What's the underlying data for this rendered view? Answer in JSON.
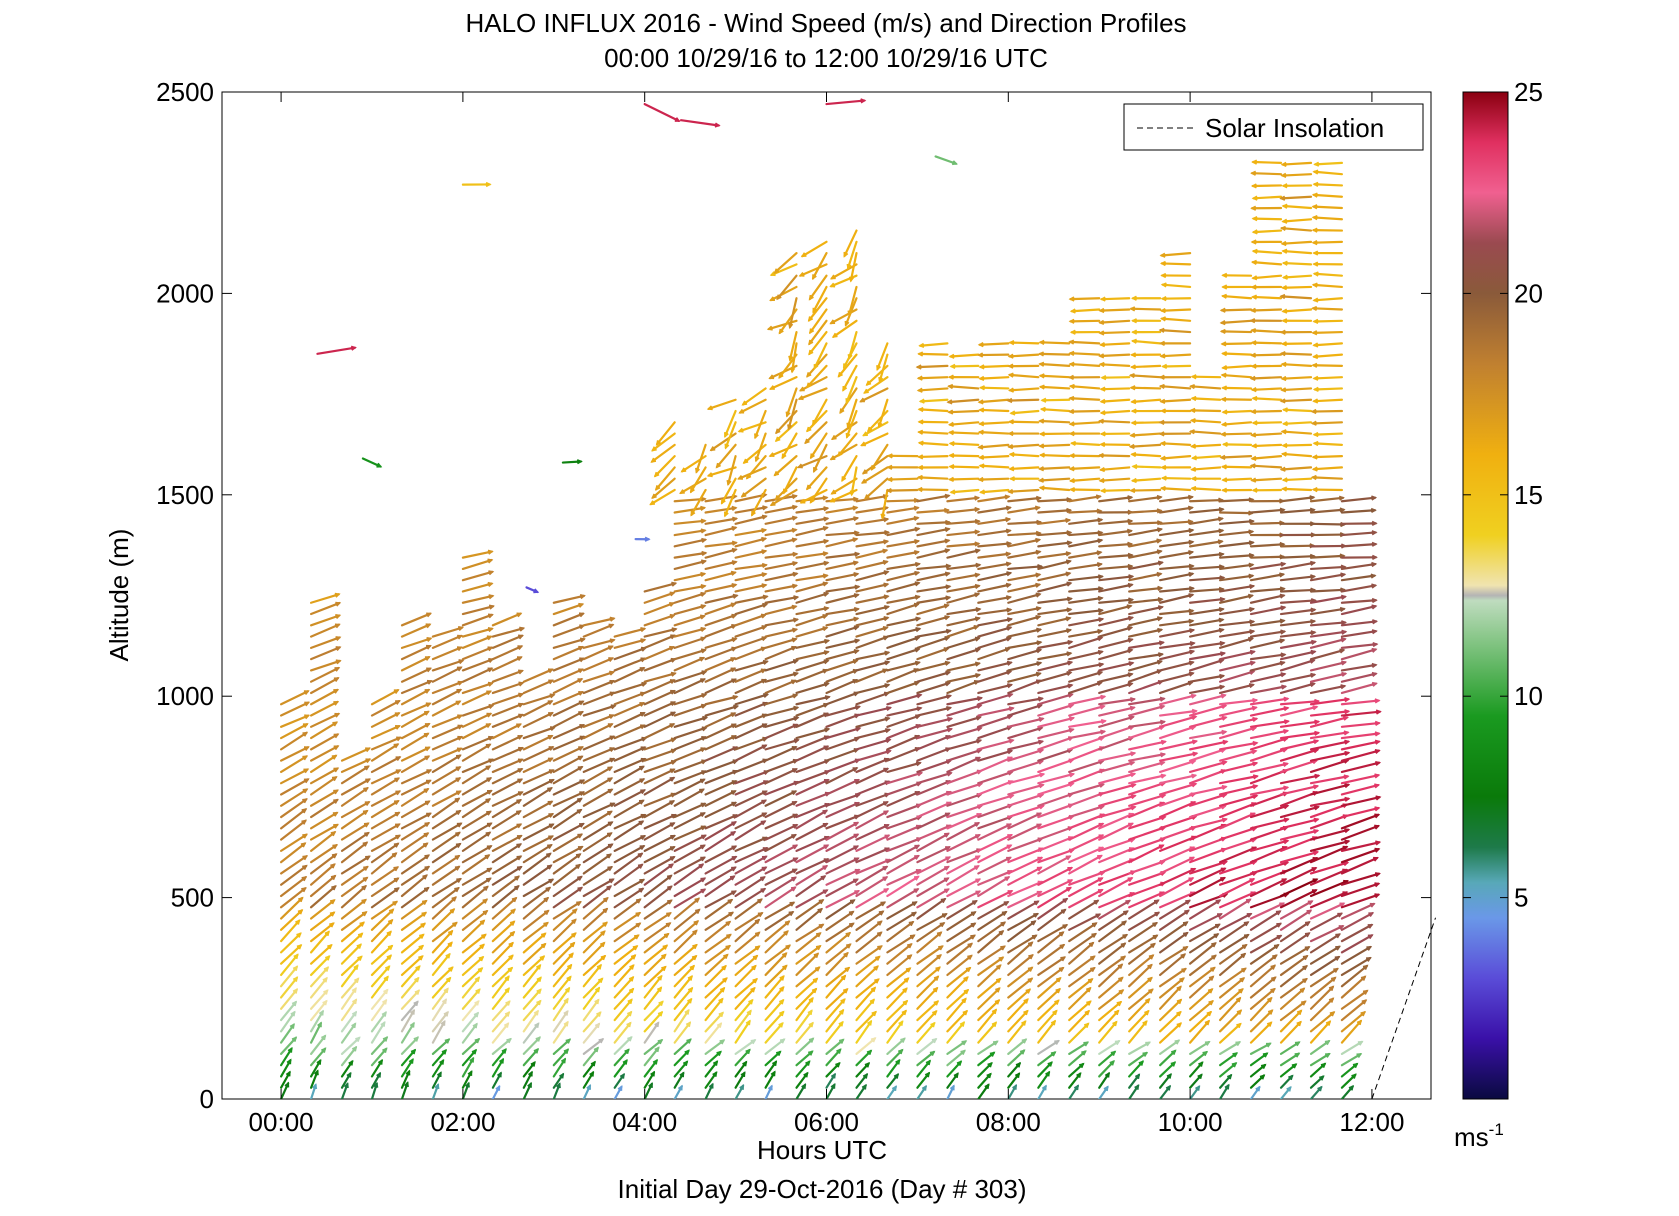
{
  "chart_data": {
    "type": "quiver",
    "title": "HALO INFLUX 2016 - Wind Speed (m/s) and Direction Profiles",
    "subtitle": "00:00 10/29/16 to 12:00 10/29/16  UTC",
    "xlabel": "Hours UTC",
    "ylabel": "Altitude (m)",
    "footer": "Initial Day 29-Oct-2016 (Day # 303)",
    "x_ticks": [
      "00:00",
      "02:00",
      "04:00",
      "06:00",
      "08:00",
      "10:00",
      "12:00"
    ],
    "x_tick_values": [
      0,
      2,
      4,
      6,
      8,
      10,
      12
    ],
    "xlim": [
      -0.65,
      12.65
    ],
    "y_ticks": [
      0,
      500,
      1000,
      1500,
      2000,
      2500
    ],
    "ylim": [
      0,
      2500
    ],
    "legend": {
      "label": "Solar Insolation",
      "placement": "top-right"
    },
    "colorbar": {
      "ticks": [
        5,
        10,
        15,
        20,
        25
      ],
      "range": [
        0,
        25
      ],
      "unit_label": "ms",
      "unit_exponent": "-1"
    },
    "solar_insolation": {
      "x": [
        12.0,
        12.7
      ],
      "y": [
        0,
        450
      ],
      "style": "dashed"
    },
    "profile_times": [
      0.0,
      0.33,
      0.67,
      1.0,
      1.33,
      1.67,
      2.0,
      2.33,
      2.67,
      3.0,
      3.33,
      3.67,
      4.0,
      4.33,
      4.67,
      5.0,
      5.33,
      5.67,
      6.0,
      6.33,
      6.67,
      7.0,
      7.33,
      7.67,
      8.0,
      8.33,
      8.67,
      9.0,
      9.33,
      9.67,
      10.0,
      10.33,
      10.67,
      11.0,
      11.33,
      11.67
    ],
    "profile_tops": [
      1000,
      1250,
      860,
      1000,
      1200,
      1150,
      1350,
      1180,
      1050,
      1250,
      1200,
      1150,
      1280,
      1700,
      1650,
      1750,
      1780,
      2100,
      2150,
      2180,
      1900,
      1600,
      1880,
      1850,
      1880,
      1880,
      1880,
      2000,
      2000,
      2000,
      2120,
      1800,
      2050,
      2330,
      2330,
      2330
    ],
    "layers": [
      {
        "altitude_range": [
          0,
          120
        ],
        "speed_ms": 7,
        "direction": "from south-southwest, turning westerly"
      },
      {
        "altitude_range": [
          120,
          450
        ],
        "speed_ms": 13,
        "direction": "from southwest"
      },
      {
        "altitude_range": [
          450,
          1000
        ],
        "speed_ms": 21,
        "direction": "from west-southwest"
      },
      {
        "altitude_range": [
          1000,
          1500
        ],
        "speed_ms": 19,
        "direction": "from west"
      },
      {
        "altitude_range": [
          1500,
          2350
        ],
        "speed_ms": 16,
        "direction": "from east, upper profiles"
      }
    ],
    "scattered_top_arrows": [
      {
        "time": 0.4,
        "altitude": 1850,
        "speed_ms": 24
      },
      {
        "time": 2.0,
        "altitude": 2270,
        "speed_ms": 15
      },
      {
        "time": 4.0,
        "altitude": 2470,
        "speed_ms": 24
      },
      {
        "time": 4.4,
        "altitude": 2430,
        "speed_ms": 24
      },
      {
        "time": 6.0,
        "altitude": 2470,
        "speed_ms": 24
      },
      {
        "time": 7.2,
        "altitude": 2340,
        "speed_ms": 11
      },
      {
        "time": 0.9,
        "altitude": 1590,
        "speed_ms": 9
      },
      {
        "time": 3.1,
        "altitude": 1580,
        "speed_ms": 8
      },
      {
        "time": 3.9,
        "altitude": 1390,
        "speed_ms": 4
      },
      {
        "time": 2.7,
        "altitude": 1270,
        "speed_ms": 3
      }
    ]
  }
}
